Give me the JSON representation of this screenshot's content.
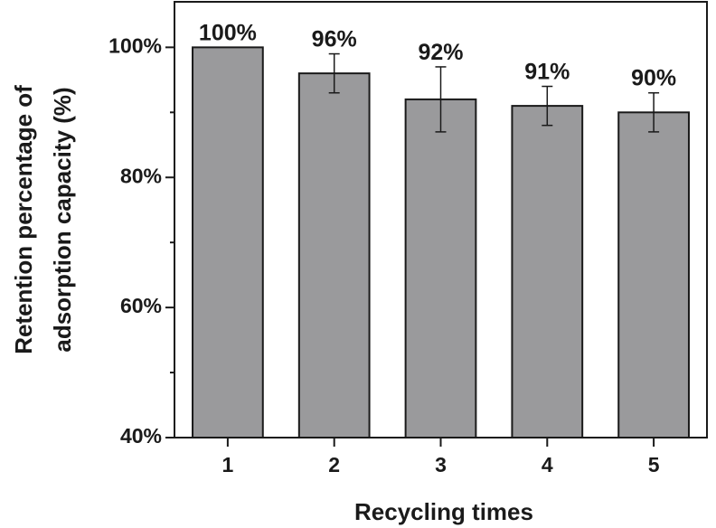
{
  "chart_data": {
    "type": "bar",
    "categories": [
      "1",
      "2",
      "3",
      "4",
      "5"
    ],
    "values": [
      100,
      96,
      92,
      91,
      90
    ],
    "errors": [
      0,
      3,
      5,
      3,
      3
    ],
    "data_labels": [
      "100%",
      "96%",
      "92%",
      "91%",
      "90%"
    ],
    "title": "",
    "xlabel": "Recycling times",
    "ylabel_lines": [
      "Retention percentage of",
      "adsorption capacity (%)"
    ],
    "ylim": [
      40,
      107
    ],
    "yticks": [
      40,
      60,
      80,
      100
    ],
    "ytick_labels": [
      "40%",
      "60%",
      "80%",
      "100%"
    ],
    "grid": false,
    "legend": "none",
    "colors": {
      "bar_fill": "#9a9a9c",
      "bar_stroke": "#1a1a1a",
      "axis": "#1a1a1a"
    }
  }
}
